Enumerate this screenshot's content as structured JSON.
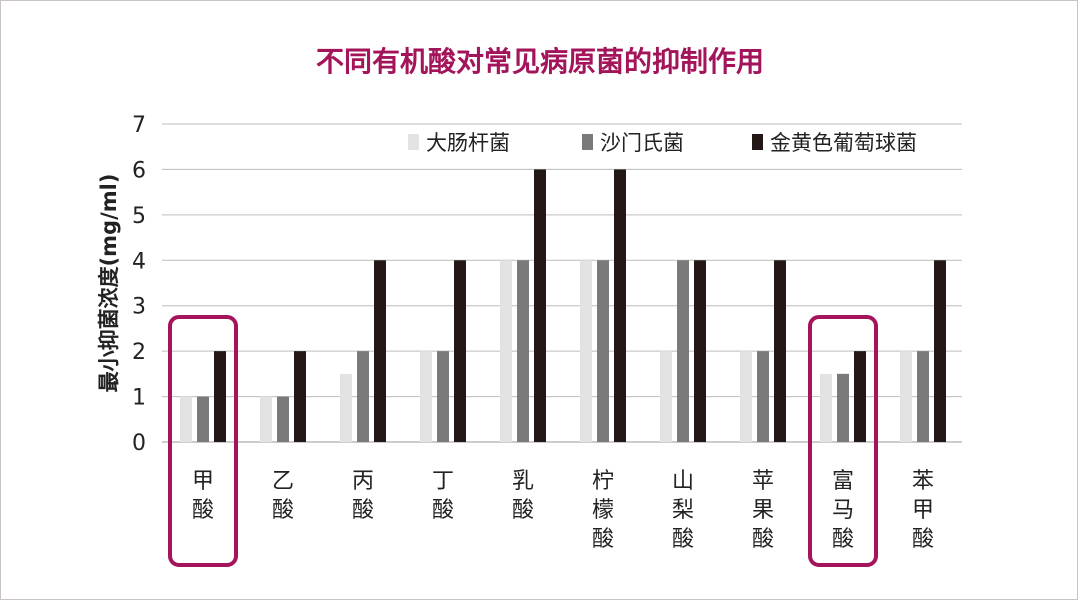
{
  "chart_data": {
    "type": "bar",
    "title": "不同有机酸对常见病原菌的抑制作用",
    "ylabel": "最小抑菌浓度(mg/ml)",
    "xlabel": "",
    "ylim": [
      0,
      7
    ],
    "yticks": [
      0,
      1,
      2,
      3,
      4,
      5,
      6,
      7
    ],
    "grid": true,
    "legend_position": "top-right",
    "categories": [
      "甲酸",
      "乙酸",
      "丙酸",
      "丁酸",
      "乳酸",
      "柠檬酸",
      "山梨酸",
      "苹果酸",
      "富马酸",
      "苯甲酸"
    ],
    "series": [
      {
        "name": "大肠杆菌",
        "color": "#e3e3e3",
        "values": [
          1,
          1,
          1.5,
          2,
          4,
          4,
          2,
          2,
          1.5,
          2
        ]
      },
      {
        "name": "沙门氏菌",
        "color": "#7a7a7a",
        "values": [
          1,
          1,
          2,
          2,
          4,
          4,
          4,
          2,
          1.5,
          2
        ]
      },
      {
        "name": "金黄色葡萄球菌",
        "color": "#231815",
        "values": [
          2,
          2,
          4,
          4,
          6,
          6,
          4,
          4,
          2,
          4
        ]
      }
    ],
    "highlighted_categories": [
      "甲酸",
      "富马酸"
    ],
    "highlight_color": "#a3145a"
  }
}
